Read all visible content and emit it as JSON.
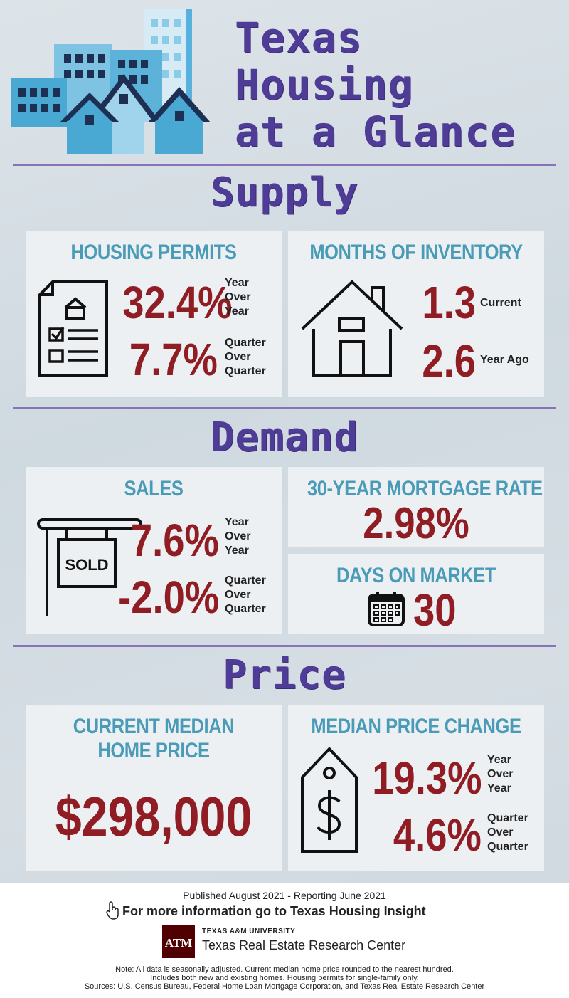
{
  "header": {
    "title_lines": [
      "Texas",
      "Housing",
      "at a Glance"
    ]
  },
  "sections": {
    "supply": "Supply",
    "demand": "Demand",
    "price": "Price"
  },
  "permits": {
    "title": "HOUSING PERMITS",
    "yoy_value": "32.4%",
    "yoy_label": [
      "Year",
      "Over",
      "Year"
    ],
    "qoq_value": "7.7%",
    "qoq_label": [
      "Quarter",
      "Over",
      "Quarter"
    ]
  },
  "inventory": {
    "title": "MONTHS OF INVENTORY",
    "current_value": "1.3",
    "current_label": "Current",
    "year_ago_value": "2.6",
    "year_ago_label": "Year Ago"
  },
  "sales": {
    "title": "SALES",
    "sign_text": "SOLD",
    "yoy_value": "7.6%",
    "yoy_label": [
      "Year",
      "Over",
      "Year"
    ],
    "qoq_value": "-2.0%",
    "qoq_label": [
      "Quarter",
      "Over",
      "Quarter"
    ]
  },
  "mortgage": {
    "title": "30-YEAR MORTGAGE RATE",
    "value": "2.98%"
  },
  "days_on_market": {
    "title": "DAYS ON MARKET",
    "value": "30"
  },
  "median_price": {
    "title_lines": [
      "CURRENT MEDIAN",
      "HOME PRICE"
    ],
    "value": "$298,000"
  },
  "price_change": {
    "title": "MEDIAN PRICE CHANGE",
    "yoy_value": "19.3%",
    "yoy_label": [
      "Year",
      "Over",
      "Year"
    ],
    "qoq_value": "4.6%",
    "qoq_label": [
      "Quarter",
      "Over",
      "Quarter"
    ]
  },
  "footer": {
    "published": "Published August 2021 - Reporting June 2021",
    "more_info": "For more information go to Texas Housing Insight",
    "university": "TEXAS A&M UNIVERSITY",
    "center": "Texas Real Estate Research Center",
    "logo_text": "ATM",
    "notes": [
      "Note: All data is seasonally adjusted. Current median home price rounded to the nearest hundred.",
      "Includes both new and existing homes. Housing permits for single-family only.",
      "Sources: U.S. Census Bureau, Federal Home Loan Mortgage Corporation, and Texas Real Estate Research Center"
    ]
  },
  "colors": {
    "purple": "#4f3c96",
    "teal": "#4a9bb7",
    "red": "#8f1d23",
    "divider": "#8673b8"
  },
  "icons": [
    "buildings-houses-illustration",
    "permit-document-icon",
    "house-outline-icon",
    "sold-sign-icon",
    "calendar-icon",
    "price-tag-icon",
    "pointer-hand-icon",
    "tamu-logo"
  ]
}
